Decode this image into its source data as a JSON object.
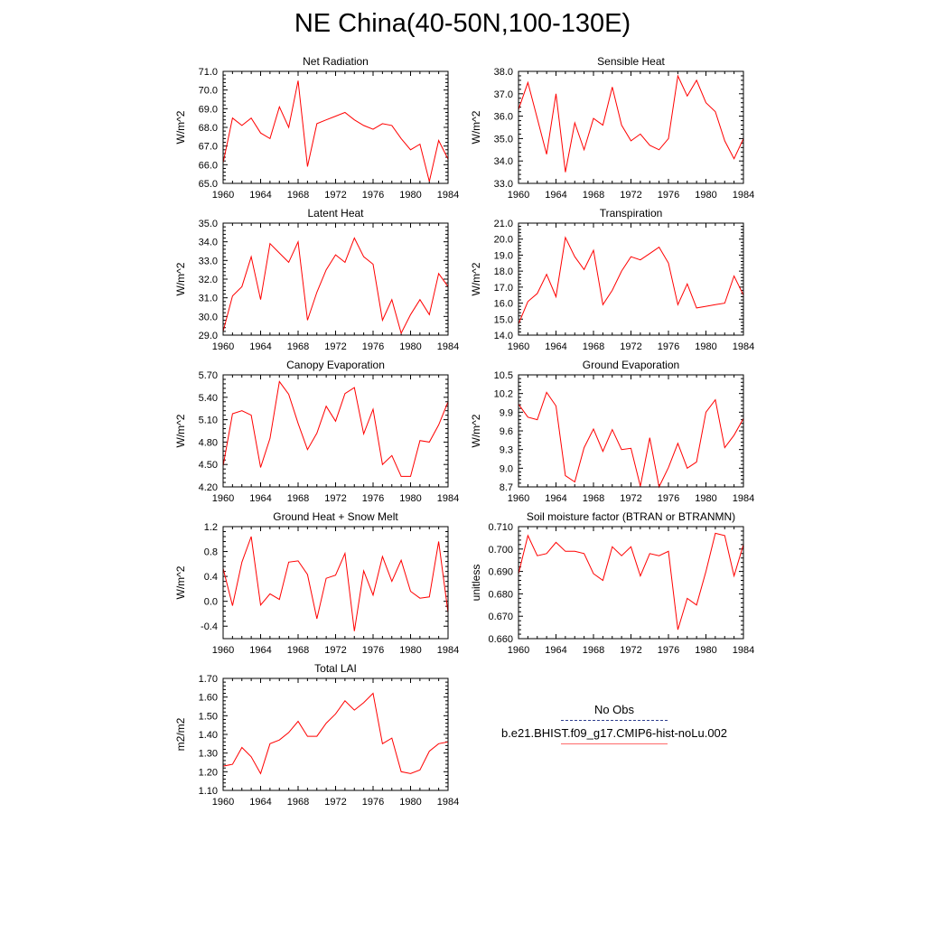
{
  "title": "NE China(40-50N,100-130E)",
  "legend": {
    "obs_label": "No Obs",
    "model_label": "b.e21.BHIST.f09_g17.CMIP6-hist-noLu.002",
    "obs_color": "#2f3f8f",
    "model_color": "#ff6a6a"
  },
  "colors": {
    "series": "#ff0000",
    "axis": "#000000"
  },
  "chart_data": [
    {
      "type": "line",
      "title": "Net Radiation",
      "ylabel": "W/m^2",
      "xlim": [
        1960,
        1984
      ],
      "ylim": [
        65.0,
        71.0
      ],
      "xticks": [
        "1960",
        "1964",
        "1968",
        "1972",
        "1976",
        "1980",
        "1984"
      ],
      "yticks": [
        "65.0",
        "66.0",
        "67.0",
        "68.0",
        "69.0",
        "70.0",
        "71.0"
      ],
      "x": [
        1960,
        1961,
        1962,
        1963,
        1964,
        1965,
        1966,
        1967,
        1968,
        1969,
        1970,
        1971,
        1972,
        1973,
        1974,
        1975,
        1976,
        1977,
        1978,
        1979,
        1980,
        1981,
        1982,
        1983,
        1984
      ],
      "y": [
        66.1,
        68.5,
        68.1,
        68.5,
        67.7,
        67.4,
        69.1,
        68.0,
        70.5,
        65.9,
        68.2,
        68.4,
        68.6,
        68.8,
        68.4,
        68.1,
        67.9,
        68.2,
        68.1,
        67.4,
        66.8,
        67.1,
        65.1,
        67.3,
        66.3
      ]
    },
    {
      "type": "line",
      "title": "Sensible Heat",
      "ylabel": "W/m^2",
      "xlim": [
        1960,
        1984
      ],
      "ylim": [
        33.0,
        38.0
      ],
      "xticks": [
        "1960",
        "1964",
        "1968",
        "1972",
        "1976",
        "1980",
        "1984"
      ],
      "yticks": [
        "33.0",
        "34.0",
        "35.0",
        "36.0",
        "37.0",
        "38.0"
      ],
      "x": [
        1960,
        1961,
        1962,
        1963,
        1964,
        1965,
        1966,
        1967,
        1968,
        1969,
        1970,
        1971,
        1972,
        1973,
        1974,
        1975,
        1976,
        1977,
        1978,
        1979,
        1980,
        1981,
        1982,
        1983,
        1984
      ],
      "y": [
        36.3,
        37.5,
        35.9,
        34.3,
        37.0,
        33.5,
        35.7,
        34.5,
        35.9,
        35.6,
        37.3,
        35.6,
        34.9,
        35.2,
        34.7,
        34.5,
        35.0,
        37.8,
        36.9,
        37.6,
        36.6,
        36.2,
        34.9,
        34.1,
        35.0
      ]
    },
    {
      "type": "line",
      "title": "Latent Heat",
      "ylabel": "W/m^2",
      "xlim": [
        1960,
        1984
      ],
      "ylim": [
        29.0,
        35.0
      ],
      "xticks": [
        "1960",
        "1964",
        "1968",
        "1972",
        "1976",
        "1980",
        "1984"
      ],
      "yticks": [
        "29.0",
        "30.0",
        "31.0",
        "32.0",
        "33.0",
        "34.0",
        "35.0"
      ],
      "x": [
        1960,
        1961,
        1962,
        1963,
        1964,
        1965,
        1966,
        1967,
        1968,
        1969,
        1970,
        1971,
        1972,
        1973,
        1974,
        1975,
        1976,
        1977,
        1978,
        1979,
        1980,
        1981,
        1982,
        1983,
        1984
      ],
      "y": [
        29.2,
        31.1,
        31.6,
        33.2,
        30.9,
        33.9,
        33.4,
        32.9,
        34.0,
        29.8,
        31.3,
        32.5,
        33.3,
        32.9,
        34.2,
        33.2,
        32.8,
        29.8,
        30.9,
        29.1,
        30.1,
        30.9,
        30.1,
        32.3,
        31.6
      ]
    },
    {
      "type": "line",
      "title": "Transpiration",
      "ylabel": "W/m^2",
      "xlim": [
        1960,
        1984
      ],
      "ylim": [
        14.0,
        21.0
      ],
      "xticks": [
        "1960",
        "1964",
        "1968",
        "1972",
        "1976",
        "1980",
        "1984"
      ],
      "yticks": [
        "14.0",
        "15.0",
        "16.0",
        "17.0",
        "18.0",
        "19.0",
        "20.0",
        "21.0"
      ],
      "x": [
        1960,
        1961,
        1962,
        1963,
        1964,
        1965,
        1966,
        1967,
        1968,
        1969,
        1970,
        1971,
        1972,
        1973,
        1974,
        1975,
        1976,
        1977,
        1978,
        1979,
        1980,
        1981,
        1982,
        1983,
        1984
      ],
      "y": [
        14.7,
        16.1,
        16.6,
        17.8,
        16.4,
        20.1,
        18.9,
        18.1,
        19.3,
        15.9,
        16.8,
        18.0,
        18.9,
        18.7,
        19.1,
        19.5,
        18.5,
        15.9,
        17.2,
        15.7,
        15.8,
        15.9,
        16.0,
        17.7,
        16.5
      ]
    },
    {
      "type": "line",
      "title": "Canopy Evaporation",
      "ylabel": "W/m^2",
      "xlim": [
        1960,
        1984
      ],
      "ylim": [
        4.2,
        5.7
      ],
      "xticks": [
        "1960",
        "1964",
        "1968",
        "1972",
        "1976",
        "1980",
        "1984"
      ],
      "yticks": [
        "4.20",
        "4.50",
        "4.80",
        "5.10",
        "5.40",
        "5.70"
      ],
      "x": [
        1960,
        1961,
        1962,
        1963,
        1964,
        1965,
        1966,
        1967,
        1968,
        1969,
        1970,
        1971,
        1972,
        1973,
        1974,
        1975,
        1976,
        1977,
        1978,
        1979,
        1980,
        1981,
        1982,
        1983,
        1984
      ],
      "y": [
        4.48,
        5.18,
        5.22,
        5.16,
        4.46,
        4.85,
        5.61,
        5.44,
        5.05,
        4.7,
        4.92,
        5.28,
        5.08,
        5.45,
        5.53,
        4.91,
        5.24,
        4.5,
        4.62,
        4.34,
        4.34,
        4.82,
        4.8,
        5.03,
        5.34
      ]
    },
    {
      "type": "line",
      "title": "Ground Evaporation",
      "ylabel": "W/m^2",
      "xlim": [
        1960,
        1984
      ],
      "ylim": [
        8.7,
        10.5
      ],
      "xticks": [
        "1960",
        "1964",
        "1968",
        "1972",
        "1976",
        "1980",
        "1984"
      ],
      "yticks": [
        "8.7",
        "9.0",
        "9.3",
        "9.6",
        "9.9",
        "10.2",
        "10.5"
      ],
      "x": [
        1960,
        1961,
        1962,
        1963,
        1964,
        1965,
        1966,
        1967,
        1968,
        1969,
        1970,
        1971,
        1972,
        1973,
        1974,
        1975,
        1976,
        1977,
        1978,
        1979,
        1980,
        1981,
        1982,
        1983,
        1984
      ],
      "y": [
        10.03,
        9.82,
        9.78,
        10.22,
        10.0,
        8.88,
        8.78,
        9.33,
        9.63,
        9.27,
        9.62,
        9.3,
        9.32,
        8.71,
        9.49,
        8.7,
        9.01,
        9.4,
        9.0,
        9.1,
        9.9,
        10.1,
        9.33,
        9.53,
        9.8
      ]
    },
    {
      "type": "line",
      "title": "Ground Heat + Snow Melt",
      "ylabel": "W/m^2",
      "xlim": [
        1960,
        1984
      ],
      "ylim": [
        -0.6,
        1.2
      ],
      "xticks": [
        "1960",
        "1964",
        "1968",
        "1972",
        "1976",
        "1980",
        "1984"
      ],
      "yticks": [
        "-0.4",
        "0.0",
        "0.4",
        "0.8",
        "1.2"
      ],
      "ytick_values": [
        -0.4,
        0.0,
        0.4,
        0.8,
        1.2
      ],
      "x": [
        1960,
        1961,
        1962,
        1963,
        1964,
        1965,
        1966,
        1967,
        1968,
        1969,
        1970,
        1971,
        1972,
        1973,
        1974,
        1975,
        1976,
        1977,
        1978,
        1979,
        1980,
        1981,
        1982,
        1983,
        1984
      ],
      "y": [
        0.53,
        -0.07,
        0.63,
        1.04,
        -0.06,
        0.12,
        0.03,
        0.63,
        0.65,
        0.43,
        -0.28,
        0.37,
        0.42,
        0.77,
        -0.48,
        0.49,
        0.1,
        0.72,
        0.32,
        0.66,
        0.16,
        0.05,
        0.07,
        0.96,
        -0.18
      ]
    },
    {
      "type": "line",
      "title": "Soil moisture factor (BTRAN or BTRANMN)",
      "ylabel": "unitless",
      "xlim": [
        1960,
        1984
      ],
      "ylim": [
        0.66,
        0.71
      ],
      "xticks": [
        "1960",
        "1964",
        "1968",
        "1972",
        "1976",
        "1980",
        "1984"
      ],
      "yticks": [
        "0.660",
        "0.670",
        "0.680",
        "0.690",
        "0.700",
        "0.710"
      ],
      "x": [
        1960,
        1961,
        1962,
        1963,
        1964,
        1965,
        1966,
        1967,
        1968,
        1969,
        1970,
        1971,
        1972,
        1973,
        1974,
        1975,
        1976,
        1977,
        1978,
        1979,
        1980,
        1981,
        1982,
        1983,
        1984
      ],
      "y": [
        0.689,
        0.706,
        0.697,
        0.698,
        0.703,
        0.699,
        0.699,
        0.698,
        0.689,
        0.686,
        0.701,
        0.697,
        0.701,
        0.688,
        0.698,
        0.697,
        0.699,
        0.664,
        0.678,
        0.675,
        0.69,
        0.707,
        0.706,
        0.688,
        0.702
      ]
    },
    {
      "type": "line",
      "title": "Total LAI",
      "ylabel": "m2/m2",
      "xlim": [
        1960,
        1984
      ],
      "ylim": [
        1.1,
        1.7
      ],
      "xticks": [
        "1960",
        "1964",
        "1968",
        "1972",
        "1976",
        "1980",
        "1984"
      ],
      "yticks": [
        "1.10",
        "1.20",
        "1.30",
        "1.40",
        "1.50",
        "1.60",
        "1.70"
      ],
      "x": [
        1960,
        1961,
        1962,
        1963,
        1964,
        1965,
        1966,
        1967,
        1968,
        1969,
        1970,
        1971,
        1972,
        1973,
        1974,
        1975,
        1976,
        1977,
        1978,
        1979,
        1980,
        1981,
        1982,
        1983,
        1984
      ],
      "y": [
        1.23,
        1.24,
        1.33,
        1.28,
        1.19,
        1.35,
        1.37,
        1.41,
        1.47,
        1.39,
        1.39,
        1.46,
        1.51,
        1.58,
        1.53,
        1.57,
        1.62,
        1.35,
        1.38,
        1.2,
        1.19,
        1.21,
        1.31,
        1.35,
        1.36
      ]
    }
  ]
}
